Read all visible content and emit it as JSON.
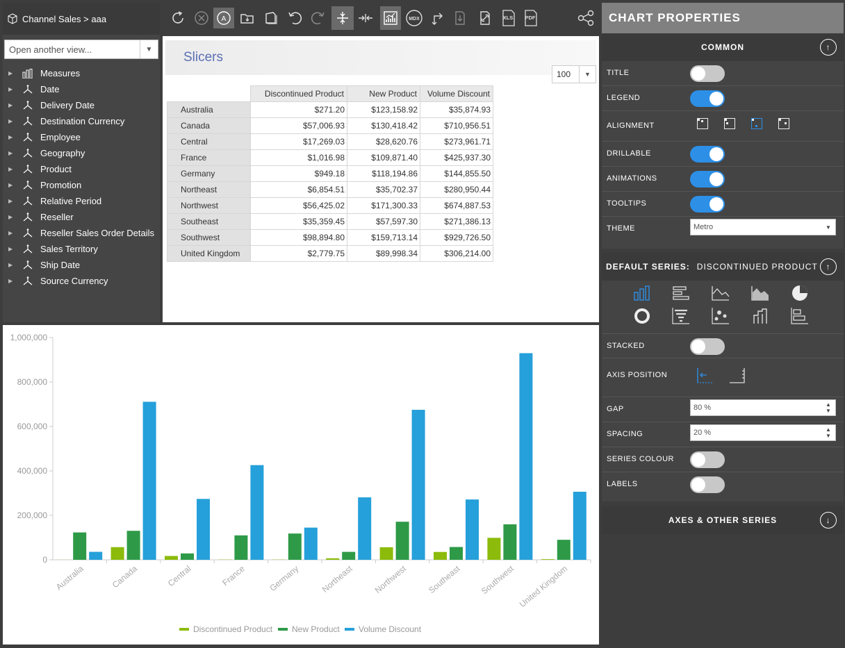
{
  "left_panel": {
    "breadcrumb": "Channel Sales > aaa",
    "view_select_placeholder": "Open another view...",
    "dimensions": [
      {
        "label": "Measures",
        "icon": "measures-icon"
      },
      {
        "label": "Date",
        "icon": "hierarchy-icon"
      },
      {
        "label": "Delivery Date",
        "icon": "hierarchy-icon"
      },
      {
        "label": "Destination Currency",
        "icon": "hierarchy-icon"
      },
      {
        "label": "Employee",
        "icon": "hierarchy-icon"
      },
      {
        "label": "Geography",
        "icon": "hierarchy-icon"
      },
      {
        "label": "Product",
        "icon": "hierarchy-icon"
      },
      {
        "label": "Promotion",
        "icon": "hierarchy-icon"
      },
      {
        "label": "Relative Period",
        "icon": "hierarchy-icon"
      },
      {
        "label": "Reseller",
        "icon": "hierarchy-icon"
      },
      {
        "label": "Reseller Sales Order Details",
        "icon": "hierarchy-icon"
      },
      {
        "label": "Sales Territory",
        "icon": "hierarchy-icon"
      },
      {
        "label": "Ship Date",
        "icon": "hierarchy-icon"
      },
      {
        "label": "Source Currency",
        "icon": "hierarchy-icon"
      }
    ]
  },
  "toolbar": {
    "mdx_label": "MDX",
    "xls_label": "XLS",
    "pdf_label": "PDF",
    "auto_label": "A"
  },
  "grid": {
    "slicers_label": "Slicers",
    "page_size": "100",
    "columns": [
      "Discontinued Product",
      "New Product",
      "Volume Discount"
    ],
    "rows": [
      {
        "label": "Australia",
        "values": [
          "$271.20",
          "$123,158.92",
          "$35,874.93"
        ]
      },
      {
        "label": "Canada",
        "values": [
          "$57,006.93",
          "$130,418.42",
          "$710,956.51"
        ]
      },
      {
        "label": "Central",
        "values": [
          "$17,269.03",
          "$28,620.76",
          "$273,961.71"
        ]
      },
      {
        "label": "France",
        "values": [
          "$1,016.98",
          "$109,871.40",
          "$425,937.30"
        ]
      },
      {
        "label": "Germany",
        "values": [
          "$949.18",
          "$118,194.86",
          "$144,855.50"
        ]
      },
      {
        "label": "Northeast",
        "values": [
          "$6,854.51",
          "$35,702.37",
          "$280,950.44"
        ]
      },
      {
        "label": "Northwest",
        "values": [
          "$56,425.02",
          "$171,300.33",
          "$674,887.53"
        ]
      },
      {
        "label": "Southeast",
        "values": [
          "$35,359.45",
          "$57,597.30",
          "$271,386.13"
        ]
      },
      {
        "label": "Southwest",
        "values": [
          "$98,894.80",
          "$159,713.14",
          "$929,726.50"
        ]
      },
      {
        "label": "United Kingdom",
        "values": [
          "$2,779.75",
          "$89,998.34",
          "$306,214.00"
        ]
      }
    ]
  },
  "chart_data": {
    "type": "bar",
    "categories": [
      "Australia",
      "Canada",
      "Central",
      "France",
      "Germany",
      "Northeast",
      "Northwest",
      "Southeast",
      "Southwest",
      "United Kingdom"
    ],
    "series": [
      {
        "name": "Discontinued Product",
        "color": "#8cbb0c",
        "values": [
          271.2,
          57006.93,
          17269.03,
          1016.98,
          949.18,
          6854.51,
          56425.02,
          35359.45,
          98894.8,
          2779.75
        ]
      },
      {
        "name": "New Product",
        "color": "#2e9a48",
        "values": [
          123158.92,
          130418.42,
          28620.76,
          109871.4,
          118194.86,
          35702.37,
          171300.33,
          57597.3,
          159713.14,
          89998.34
        ]
      },
      {
        "name": "Volume Discount",
        "color": "#25a0da",
        "values": [
          35874.93,
          710956.51,
          273961.71,
          425937.3,
          144855.5,
          280950.44,
          674887.53,
          271386.13,
          929726.5,
          306214.0
        ]
      }
    ],
    "y_ticks": [
      "0",
      "200,000",
      "400,000",
      "600,000",
      "800,000",
      "1,000,000"
    ],
    "ylim": [
      0,
      1000000
    ],
    "grid": false,
    "legend_position": "bottom"
  },
  "properties": {
    "title": "CHART PROPERTIES",
    "common": {
      "heading": "COMMON",
      "title_label": "TITLE",
      "title_on": false,
      "legend_label": "LEGEND",
      "legend_on": true,
      "alignment_label": "ALIGNMENT",
      "drillable_label": "DRILLABLE",
      "drillable_on": true,
      "animations_label": "ANIMATIONS",
      "animations_on": true,
      "tooltips_label": "TOOLTIPS",
      "tooltips_on": true,
      "theme_label": "THEME",
      "theme_value": "Metro"
    },
    "series": {
      "heading": "DEFAULT SERIES:",
      "series_name": "DISCONTINUED PRODUCT",
      "stacked_label": "STACKED",
      "stacked_on": false,
      "axis_position_label": "AXIS POSITION",
      "gap_label": "GAP",
      "gap_value": "80 %",
      "spacing_label": "SPACING",
      "spacing_value": "20 %",
      "series_colour_label": "SERIES COLOUR",
      "series_colour_on": false,
      "labels_label": "LABELS",
      "labels_on": false
    },
    "axes": {
      "heading": "AXES & OTHER SERIES"
    },
    "accent_color": "#2d8fe6"
  }
}
